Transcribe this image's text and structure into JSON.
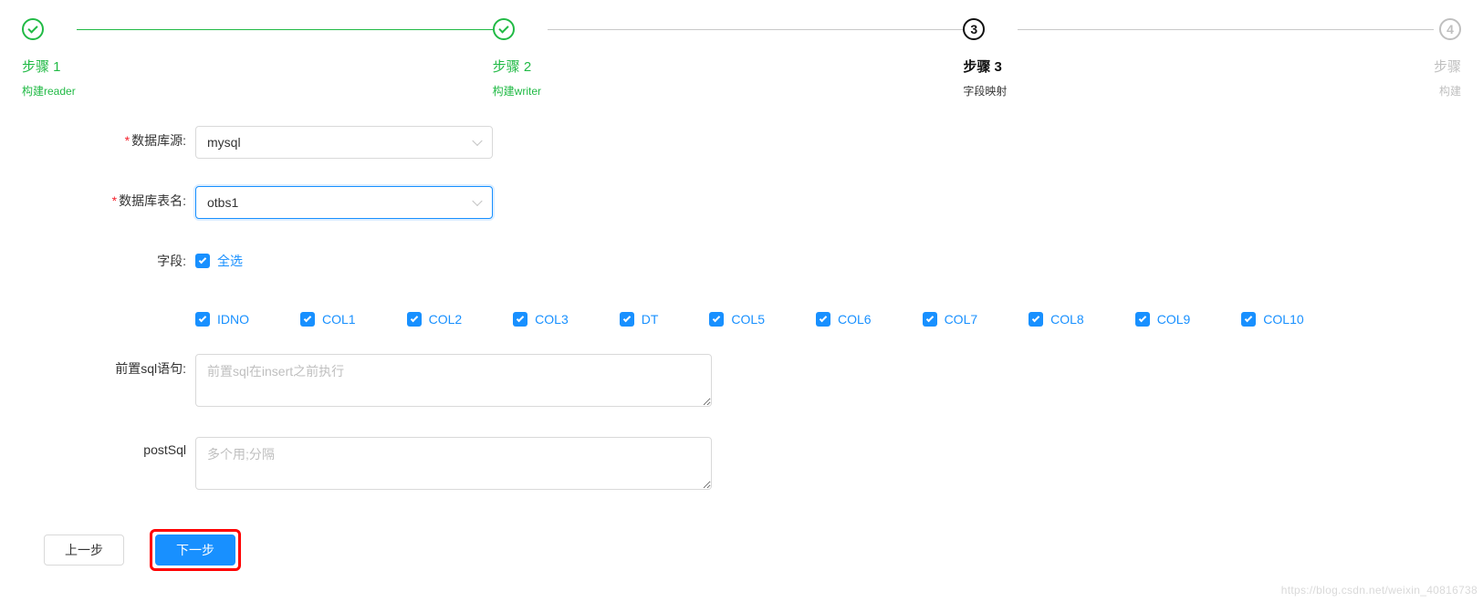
{
  "colors": {
    "green": "#21ba45",
    "primary_blue": "#1890ff",
    "gray_line": "#c9c9c9",
    "gray_text": "#bfbfbf",
    "red_required": "#f5222d",
    "highlight_red": "#ff0000",
    "text": "#333333",
    "bg": "#ffffff"
  },
  "steps": {
    "s1": {
      "title": "步骤 1",
      "sub": "构建reader",
      "state": "finished"
    },
    "s2": {
      "title": "步骤 2",
      "sub": "构建writer",
      "state": "finished"
    },
    "s3": {
      "title": "步骤 3",
      "sub": "字段映射",
      "state": "process",
      "num": "3"
    },
    "s4": {
      "title": "步骤",
      "sub": "构建",
      "state": "wait",
      "num": "4"
    }
  },
  "form": {
    "dbSource": {
      "label": "数据库源:",
      "value": "mysql",
      "required": true
    },
    "dbTable": {
      "label": "数据库表名:",
      "value": "otbs1",
      "required": true,
      "focused": true
    },
    "fields": {
      "label": "字段:",
      "selectAllLabel": "全选",
      "items": [
        "IDNO",
        "COL1",
        "COL2",
        "COL3",
        "DT",
        "COL5",
        "COL6",
        "COL7",
        "COL8",
        "COL9",
        "COL10"
      ]
    },
    "preSql": {
      "label": "前置sql语句:",
      "placeholder": "前置sql在insert之前执行"
    },
    "postSql": {
      "label": "postSql",
      "placeholder": "多个用;分隔"
    }
  },
  "buttons": {
    "prev": "上一步",
    "next": "下一步"
  },
  "watermark": "https://blog.csdn.net/weixin_40816738"
}
